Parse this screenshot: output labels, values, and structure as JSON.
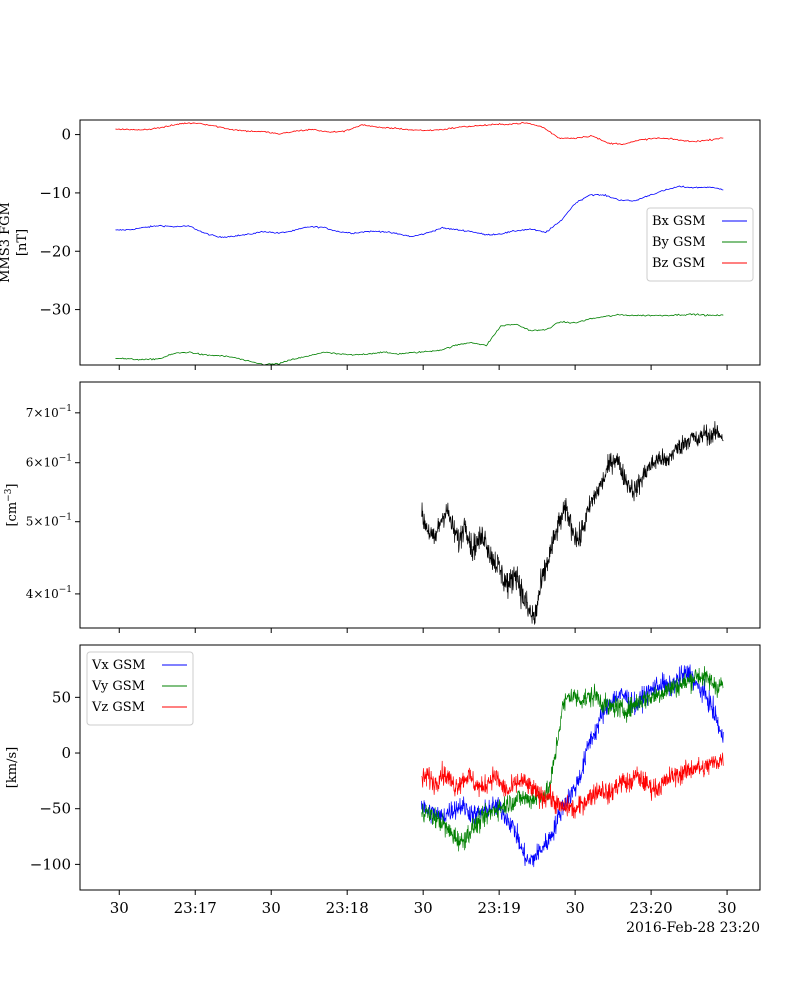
{
  "chart_data": [
    {
      "type": "line",
      "ylabel": "MMS3 FGM\n[nT]",
      "ylim": [
        -39.5,
        2.5
      ],
      "y_ticks": [
        {
          "value": 0,
          "label": "0"
        },
        {
          "value": -10,
          "label": "−10"
        },
        {
          "value": -20,
          "label": "−20"
        },
        {
          "value": -30,
          "label": "−30"
        }
      ],
      "legend": {
        "placement": "center-right"
      },
      "t_start": 28.5,
      "t_end": 268.5,
      "series": [
        {
          "name": "Bx GSM",
          "color": "#0000ff",
          "values": [
            -16.4,
            -16.3,
            -15.9,
            -15.6,
            -15.8,
            -15.7,
            -16.9,
            -17.6,
            -17.4,
            -17.1,
            -16.6,
            -16.9,
            -16.5,
            -15.8,
            -15.9,
            -16.6,
            -16.9,
            -16.6,
            -16.6,
            -17.0,
            -17.5,
            -16.9,
            -16.0,
            -16.3,
            -16.6,
            -17.2,
            -17.0,
            -16.5,
            -16.2,
            -16.8,
            -14.9,
            -11.8,
            -10.3,
            -10.4,
            -11.2,
            -11.4,
            -10.4,
            -9.6,
            -8.9,
            -9.1,
            -9.0,
            -9.4
          ]
        },
        {
          "name": "By GSM",
          "color": "#008000",
          "values": [
            -38.3,
            -38.5,
            -38.6,
            -38.4,
            -37.5,
            -37.3,
            -37.8,
            -37.9,
            -38.2,
            -38.9,
            -39.4,
            -39.3,
            -38.5,
            -38.0,
            -37.3,
            -37.6,
            -37.8,
            -37.6,
            -37.3,
            -37.6,
            -37.4,
            -37.2,
            -36.9,
            -36.1,
            -35.6,
            -36.2,
            -32.8,
            -32.5,
            -33.6,
            -33.5,
            -32.1,
            -32.3,
            -31.6,
            -31.2,
            -30.9,
            -31.0,
            -31.0,
            -31.0,
            -30.9,
            -30.8,
            -31.0,
            -31.0
          ]
        },
        {
          "name": "Bz GSM",
          "color": "#ff0000",
          "values": [
            1.0,
            0.8,
            0.9,
            1.3,
            1.9,
            2.0,
            1.5,
            0.9,
            0.6,
            0.5,
            0.1,
            0.6,
            0.9,
            0.4,
            0.6,
            1.7,
            1.2,
            1.1,
            0.8,
            0.7,
            0.9,
            1.3,
            1.5,
            1.7,
            1.8,
            2.0,
            1.3,
            -0.6,
            -0.6,
            -0.2,
            -1.5,
            -1.6,
            -0.9,
            -0.6,
            -0.8,
            -1.2,
            -1.0,
            -0.5
          ]
        }
      ]
    },
    {
      "type": "line",
      "ylabel": "[cm^-3]",
      "yscale": "log",
      "ylim": [
        0.36,
        0.77
      ],
      "y_ticks": [
        {
          "value": 0.4,
          "mantissa": "4",
          "label": "4×10^-1"
        },
        {
          "value": 0.5,
          "mantissa": "5",
          "label": "5×10^-1"
        },
        {
          "value": 0.6,
          "mantissa": "6",
          "label": "6×10^-1"
        },
        {
          "value": 0.7,
          "mantissa": "7",
          "label": "7×10^-1"
        }
      ],
      "series": [
        {
          "color": "#000000",
          "t_start": 149.3,
          "t_end": 268.5,
          "values": [
            0.51,
            0.49,
            0.47,
            0.5,
            0.52,
            0.49,
            0.47,
            0.5,
            0.46,
            0.47,
            0.48,
            0.45,
            0.44,
            0.42,
            0.41,
            0.43,
            0.4,
            0.38,
            0.37,
            0.41,
            0.44,
            0.47,
            0.5,
            0.52,
            0.49,
            0.47,
            0.5,
            0.53,
            0.55,
            0.57,
            0.6,
            0.61,
            0.58,
            0.56,
            0.55,
            0.57,
            0.59,
            0.6,
            0.61,
            0.6,
            0.62,
            0.63,
            0.64,
            0.65,
            0.64,
            0.66,
            0.65,
            0.66,
            0.65
          ]
        }
      ]
    },
    {
      "type": "line",
      "ylabel": "[km/s]",
      "ylim": [
        -123,
        97
      ],
      "y_ticks": [
        {
          "value": 50,
          "label": "50"
        },
        {
          "value": 0,
          "label": "0"
        },
        {
          "value": -50,
          "label": "−50"
        },
        {
          "value": -100,
          "label": "−100"
        }
      ],
      "legend": {
        "placement": "top-left"
      },
      "t_start": 149.3,
      "t_end": 268.5,
      "series": [
        {
          "name": "Vx GSM",
          "color": "#0000ff",
          "values": [
            -48,
            -52,
            -55,
            -58,
            -53,
            -50,
            -47,
            -52,
            -56,
            -54,
            -50,
            -48,
            -52,
            -60,
            -70,
            -88,
            -98,
            -93,
            -85,
            -78,
            -65,
            -48,
            -40,
            -30,
            -15,
            10,
            20,
            35,
            45,
            50,
            52,
            48,
            42,
            50,
            55,
            60,
            62,
            58,
            65,
            70,
            72,
            60,
            55,
            45,
            30,
            10
          ]
        },
        {
          "name": "Vy GSM",
          "color": "#008000",
          "values": [
            -50,
            -55,
            -58,
            -62,
            -70,
            -75,
            -80,
            -72,
            -65,
            -60,
            -55,
            -50,
            -48,
            -45,
            -42,
            -40,
            -42,
            -40,
            -38,
            -35,
            0,
            40,
            52,
            50,
            48,
            50,
            52,
            45,
            40,
            42,
            38,
            40,
            45,
            48,
            50,
            52,
            55,
            58,
            60,
            62,
            65,
            70,
            68,
            65,
            60,
            62
          ]
        },
        {
          "name": "Vz GSM",
          "color": "#ff0000",
          "values": [
            -25,
            -20,
            -28,
            -18,
            -22,
            -30,
            -25,
            -20,
            -28,
            -32,
            -25,
            -20,
            -30,
            -35,
            -28,
            -25,
            -30,
            -35,
            -40,
            -38,
            -45,
            -50,
            -48,
            -52,
            -45,
            -40,
            -35,
            -32,
            -38,
            -30,
            -25,
            -28,
            -20,
            -25,
            -30,
            -32,
            -28,
            -22,
            -20,
            -18,
            -15,
            -12,
            -15,
            -10,
            -8,
            -5
          ]
        }
      ]
    }
  ],
  "x_axis": {
    "ticks": [
      {
        "t": 30,
        "label": "30"
      },
      {
        "t": 60,
        "label": "23:17"
      },
      {
        "t": 90,
        "label": "30"
      },
      {
        "t": 120,
        "label": "23:18"
      },
      {
        "t": 150,
        "label": "30"
      },
      {
        "t": 180,
        "label": "23:19"
      },
      {
        "t": 210,
        "label": "30"
      },
      {
        "t": 240,
        "label": "23:20"
      },
      {
        "t": 270,
        "label": "30"
      }
    ],
    "date_label": "2016-Feb-28 23:20"
  }
}
